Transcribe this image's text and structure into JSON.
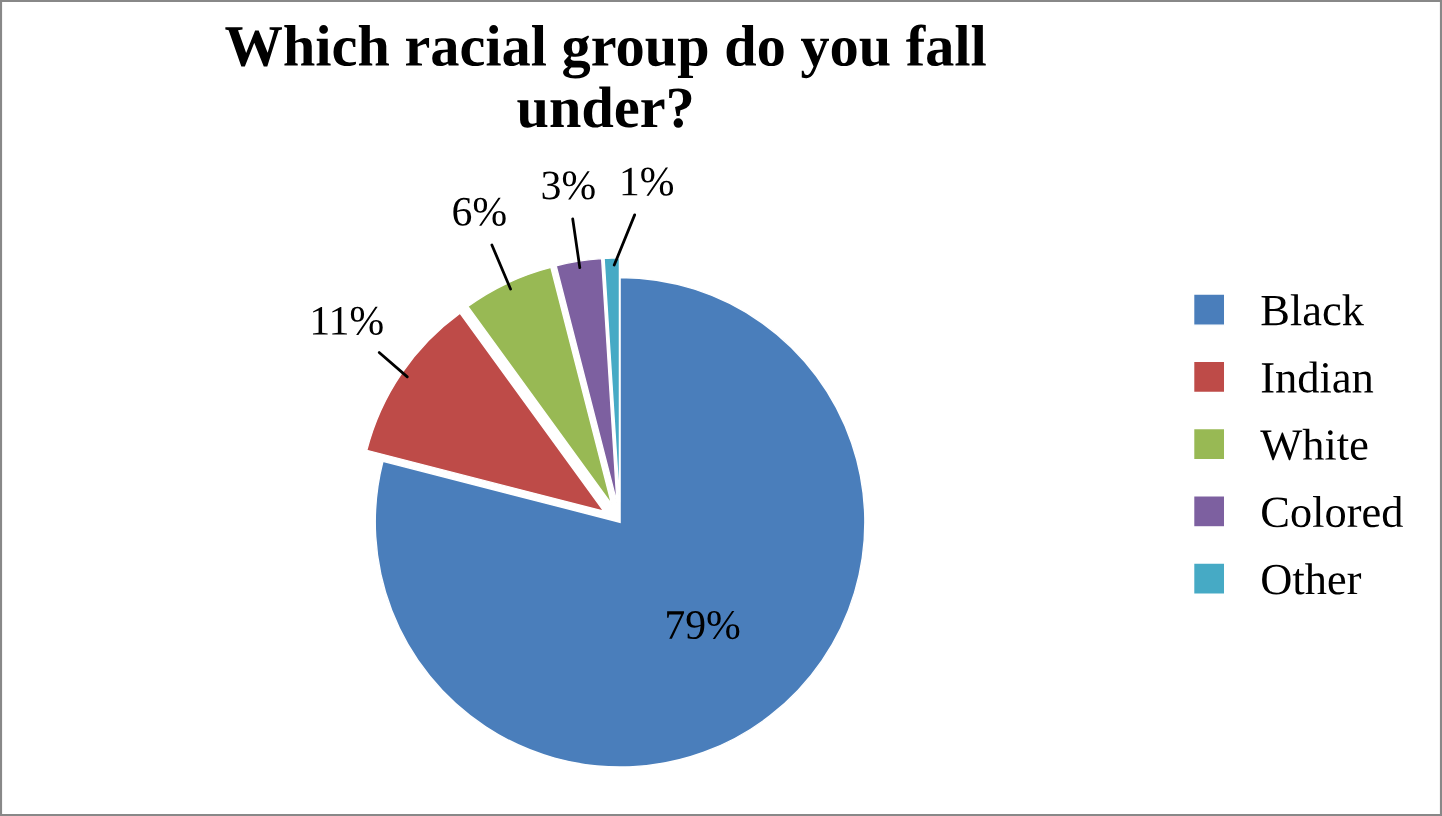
{
  "chart_data": {
    "type": "pie",
    "title": "Which racial group do you fall under?",
    "categories": [
      "Black",
      "Indian",
      "White",
      "Colored",
      "Other"
    ],
    "values": [
      79,
      11,
      6,
      3,
      1
    ],
    "value_labels": [
      "79%",
      "11%",
      "6%",
      "3%",
      "1%"
    ],
    "colors": [
      "#4a7ebb",
      "#be4b48",
      "#98b954",
      "#7d60a0",
      "#46aac5"
    ],
    "legend": "right"
  }
}
